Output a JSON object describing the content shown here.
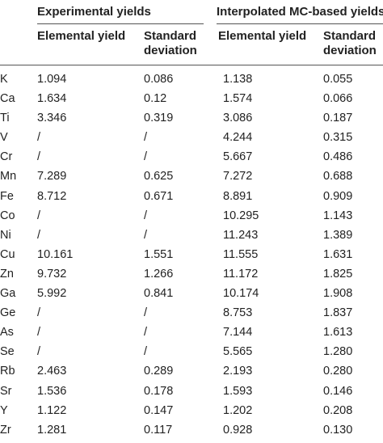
{
  "table": {
    "group_headers": {
      "experimental": "Experimental yields",
      "interpolated": "Interpolated MC-based yields"
    },
    "sub_headers": {
      "exp_yield": "Elemental yield",
      "exp_sd_line1": "Standard",
      "exp_sd_line2": "deviation",
      "mc_yield": "Elemental yield",
      "mc_sd_line1": "Standard",
      "mc_sd_line2": "deviation"
    },
    "rows": [
      {
        "element": "K",
        "exp_yield": "1.094",
        "exp_sd": "0.086",
        "mc_yield": "1.138",
        "mc_sd": "0.055"
      },
      {
        "element": "Ca",
        "exp_yield": "1.634",
        "exp_sd": "0.12",
        "mc_yield": "1.574",
        "mc_sd": "0.066"
      },
      {
        "element": "Ti",
        "exp_yield": "3.346",
        "exp_sd": "0.319",
        "mc_yield": "3.086",
        "mc_sd": "0.187"
      },
      {
        "element": "V",
        "exp_yield": "/",
        "exp_sd": "/",
        "mc_yield": "4.244",
        "mc_sd": "0.315"
      },
      {
        "element": "Cr",
        "exp_yield": "/",
        "exp_sd": "/",
        "mc_yield": "5.667",
        "mc_sd": "0.486"
      },
      {
        "element": "Mn",
        "exp_yield": "7.289",
        "exp_sd": "0.625",
        "mc_yield": "7.272",
        "mc_sd": "0.688"
      },
      {
        "element": "Fe",
        "exp_yield": "8.712",
        "exp_sd": "0.671",
        "mc_yield": "8.891",
        "mc_sd": "0.909"
      },
      {
        "element": "Co",
        "exp_yield": "/",
        "exp_sd": "/",
        "mc_yield": "10.295",
        "mc_sd": "1.143"
      },
      {
        "element": "Ni",
        "exp_yield": "/",
        "exp_sd": "/",
        "mc_yield": "11.243",
        "mc_sd": "1.389"
      },
      {
        "element": "Cu",
        "exp_yield": "10.161",
        "exp_sd": "1.551",
        "mc_yield": "11.555",
        "mc_sd": "1.631"
      },
      {
        "element": "Zn",
        "exp_yield": "9.732",
        "exp_sd": "1.266",
        "mc_yield": "11.172",
        "mc_sd": "1.825"
      },
      {
        "element": "Ga",
        "exp_yield": "5.992",
        "exp_sd": "0.841",
        "mc_yield": "10.174",
        "mc_sd": "1.908"
      },
      {
        "element": "Ge",
        "exp_yield": "/",
        "exp_sd": "/",
        "mc_yield": "8.753",
        "mc_sd": "1.837"
      },
      {
        "element": "As",
        "exp_yield": "/",
        "exp_sd": "/",
        "mc_yield": "7.144",
        "mc_sd": "1.613"
      },
      {
        "element": "Se",
        "exp_yield": "/",
        "exp_sd": "/",
        "mc_yield": "5.565",
        "mc_sd": "1.280"
      },
      {
        "element": "Rb",
        "exp_yield": "2.463",
        "exp_sd": "0.289",
        "mc_yield": "2.193",
        "mc_sd": "0.280"
      },
      {
        "element": "Sr",
        "exp_yield": "1.536",
        "exp_sd": "0.178",
        "mc_yield": "1.593",
        "mc_sd": "0.146"
      },
      {
        "element": "Y",
        "exp_yield": "1.122",
        "exp_sd": "0.147",
        "mc_yield": "1.202",
        "mc_sd": "0.208"
      },
      {
        "element": "Zr",
        "exp_yield": "1.281",
        "exp_sd": "0.117",
        "mc_yield": "0.928",
        "mc_sd": "0.130"
      }
    ]
  }
}
